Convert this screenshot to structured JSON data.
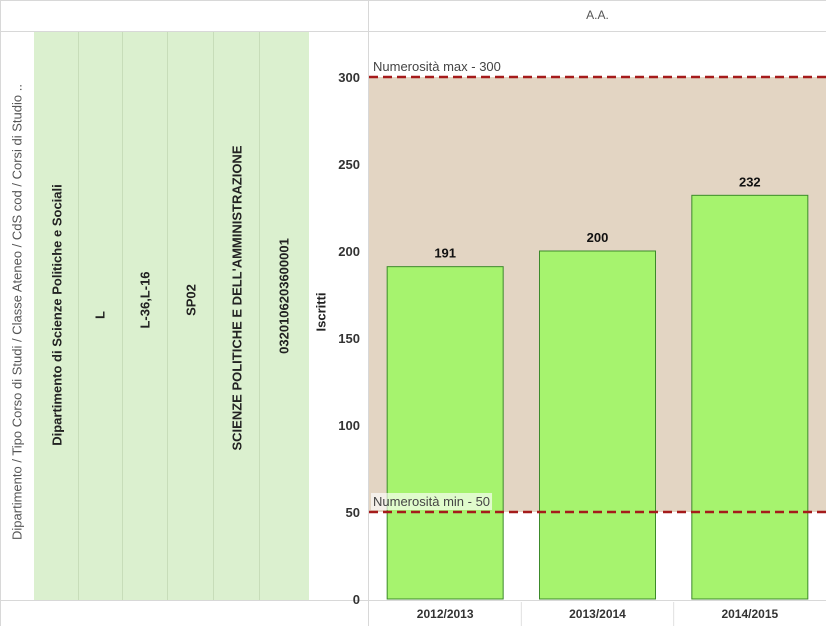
{
  "header": {
    "column_label": "A.A."
  },
  "row_dimensions": {
    "path_label": "Dipartimento  /  Tipo Corso di Studi  /  Classe Ateneo  /  CdS cod  /  Corsi di Studio ..",
    "values": [
      "Dipartimento di Scienze Politiche e Sociali",
      "L",
      "L-36,L-16",
      "SP02",
      "SCIENZE POLITICHE E DELL'AMMINISTRAZIONE",
      "0320106203600001"
    ]
  },
  "chart_data": {
    "type": "bar",
    "categories": [
      "2012/2013",
      "2013/2014",
      "2014/2015"
    ],
    "values": [
      191,
      200,
      232
    ],
    "value_labels": [
      "191",
      "200",
      "232"
    ],
    "ylabel": "Iscritti",
    "ylim": [
      0,
      325
    ],
    "yticks": [
      0,
      50,
      100,
      150,
      200,
      250,
      300
    ],
    "ytick_labels": [
      "0",
      "50",
      "100",
      "150",
      "200",
      "250",
      "300"
    ],
    "reference_lines": [
      {
        "label": "Numerosità max - 300",
        "value": 300
      },
      {
        "label": "Numerosità min - 50",
        "value": 50
      }
    ],
    "reference_band": [
      50,
      300
    ],
    "colors": {
      "bar_fill": "#a6f36e",
      "bar_stroke": "#3c8a2a",
      "band": "#e3d5c3",
      "ref_line": "#a51b1b",
      "row_header_fill": "#dbf0cf"
    }
  }
}
